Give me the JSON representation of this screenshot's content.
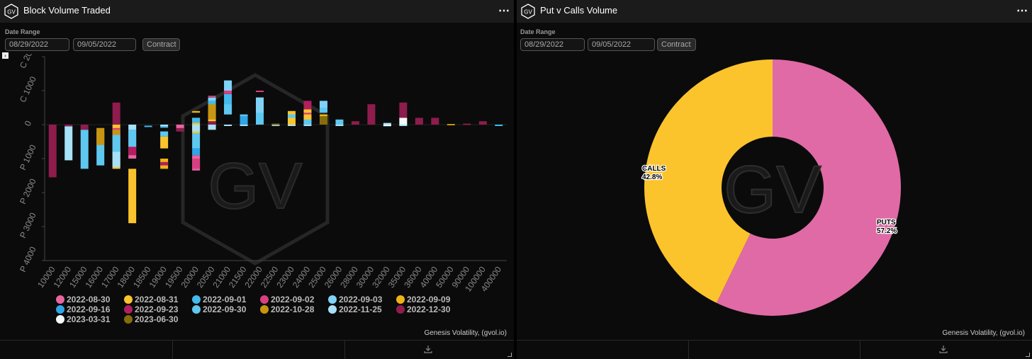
{
  "left_panel": {
    "title": "Block Volume Traded",
    "date_range_label": "Date Range",
    "start_date": "08/29/2022",
    "end_date": "09/05/2022",
    "contract_button": "Contract",
    "credit": "Genesis Volatility, (gvol.io)",
    "watermark": "GV"
  },
  "right_panel": {
    "title": "Put v Calls Volume",
    "date_range_label": "Date Range",
    "start_date": "08/29/2022",
    "end_date": "09/05/2022",
    "contract_button": "Contract",
    "credit": "Genesis Volatility, (gvol.io)",
    "watermark": "GV"
  },
  "chart_data": [
    {
      "type": "bar",
      "stacked": true,
      "categories": [
        "10000",
        "12000",
        "15000",
        "16000",
        "17000",
        "18000",
        "18500",
        "19000",
        "19500",
        "20000",
        "20500",
        "21000",
        "21500",
        "22000",
        "22500",
        "23000",
        "24000",
        "25000",
        "26000",
        "28000",
        "30000",
        "32000",
        "35000",
        "36000",
        "40000",
        "50000",
        "90000",
        "100000",
        "400000"
      ],
      "y_tick_labels": [
        "C 2000",
        "C 1000",
        "0",
        "P 1000",
        "P 2000",
        "P 3000",
        "P 4000"
      ],
      "y_tick_values": [
        2000,
        1000,
        0,
        -1000,
        -2000,
        -3000,
        -4000
      ],
      "ylim": [
        -4000,
        2000
      ],
      "series": [
        {
          "name": "2022-08-30",
          "color": "#e8659f",
          "values": [
            0,
            0,
            0,
            0,
            0,
            [
              -150,
              -1000
            ],
            0,
            0,
            [
              0,
              -200
            ],
            [
              -900,
              -1350
            ],
            0,
            0,
            0,
            0,
            0,
            0,
            0,
            0,
            0,
            0,
            0,
            0,
            0,
            0,
            0,
            0,
            0,
            0,
            0
          ]
        },
        {
          "name": "2022-08-31",
          "color": "#fcc42c",
          "values": [
            0,
            0,
            0,
            0,
            [
              0,
              -1300
            ],
            [
              -1300,
              -2900
            ],
            0,
            [
              -350,
              -700
            ],
            0,
            [
              200,
              -250
            ],
            [
              400,
              -150
            ],
            0,
            0,
            [
              50,
              50
            ],
            0,
            [
              400,
              0
            ],
            [
              450,
              0
            ],
            [
              60,
              0
            ],
            0,
            0,
            0,
            0,
            0,
            0,
            0,
            0,
            0,
            0,
            0
          ]
        },
        {
          "name": "2022-09-01",
          "color": "#44b9ec",
          "values": [
            0,
            0,
            0,
            0,
            0,
            0,
            [
              -30,
              -30
            ],
            [
              -50,
              -50
            ],
            0,
            [
              200,
              50
            ],
            [
              700,
              400
            ],
            [
              900,
              300
            ],
            [
              150,
              0
            ],
            [
              200,
              50
            ],
            0,
            0,
            0,
            0,
            0,
            0,
            0,
            [
              0,
              -50
            ],
            0,
            0,
            0,
            0,
            0,
            0,
            [
              0,
              -30
            ]
          ]
        },
        {
          "name": "2022-09-02",
          "color": "#d83f82",
          "values": [
            0,
            [
              -50,
              -50
            ],
            0,
            [
              -100,
              -100
            ],
            [
              -100,
              -800
            ],
            0,
            0,
            0,
            0,
            [
              -1000,
              -1300
            ],
            [
              850,
              850
            ],
            [
              1100,
              900
            ],
            0,
            [
              1000,
              1000
            ],
            0,
            0,
            [
              350,
              300
            ],
            0,
            0,
            0,
            0,
            0,
            0,
            0,
            0,
            0,
            0,
            0,
            0
          ]
        },
        {
          "name": "2022-09-03",
          "color": "#7fd3f7",
          "values": [
            0,
            0,
            0,
            0,
            0,
            0,
            0,
            0,
            0,
            0,
            [
              800,
              700
            ],
            [
              1300,
              1000
            ],
            0,
            [
              800,
              300
            ],
            0,
            0,
            0,
            [
              700,
              400
            ],
            0,
            0,
            0,
            0,
            0,
            0,
            0,
            0,
            0,
            0,
            0
          ]
        },
        {
          "name": "2022-09-09",
          "color": "#efb414",
          "values": [
            0,
            0,
            0,
            0,
            0,
            0,
            0,
            [
              -1000,
              -1300
            ],
            0,
            [
              400,
              350
            ],
            0,
            [
              0,
              0
            ],
            0,
            0,
            0,
            0,
            0,
            [
              300,
              250
            ],
            0,
            0,
            0,
            0,
            0,
            0,
            0,
            0,
            0,
            0,
            0
          ]
        },
        {
          "name": "2022-09-16",
          "color": "#2fa4e7",
          "values": [
            0,
            0,
            0,
            0,
            0,
            0,
            0,
            0,
            0,
            [
              -700,
              -900
            ],
            0,
            [
              0,
              0
            ],
            [
              250,
              0
            ],
            0,
            0,
            0,
            0,
            0,
            0,
            0,
            0,
            0,
            0,
            0,
            0,
            0,
            0,
            0,
            0
          ]
        },
        {
          "name": "2022-09-23",
          "color": "#b21e5f",
          "values": [
            0,
            0,
            0,
            0,
            0,
            [
              -650,
              -900
            ],
            0,
            [
              -1100,
              -1200
            ],
            0,
            [
              -300,
              -400
            ],
            0,
            [
              0,
              0
            ],
            0,
            0,
            0,
            0,
            [
              700,
              450
            ],
            0,
            0,
            0,
            0,
            0,
            0,
            0,
            0,
            0,
            0,
            0,
            0
          ]
        },
        {
          "name": "2022-09-30",
          "color": "#5ec8f0",
          "values": [
            0,
            0,
            [
              -150,
              -1300
            ],
            [
              -200,
              -1200
            ],
            [
              -300,
              -850
            ],
            [
              -150,
              -650
            ],
            0,
            [
              -200,
              -350
            ],
            0,
            [
              -250,
              -700
            ],
            0,
            [
              600,
              300
            ],
            [
              300,
              250
            ],
            [
              350,
              0
            ],
            0,
            [
              300,
              200
            ],
            [
              150,
              0
            ],
            [
              500,
              350
            ],
            [
              150,
              0
            ],
            0,
            0,
            0,
            0,
            0,
            0,
            0,
            0,
            0,
            0
          ]
        },
        {
          "name": "2022-10-28",
          "color": "#c89510",
          "values": [
            0,
            0,
            0,
            [
              -100,
              -600
            ],
            [
              -150,
              -300
            ],
            0,
            0,
            0,
            0,
            0,
            [
              600,
              150
            ],
            0,
            0,
            0,
            0,
            0,
            0,
            0,
            0,
            0,
            0,
            0,
            0,
            0,
            0,
            [
              20,
              -20
            ],
            0,
            0,
            0
          ]
        },
        {
          "name": "2022-11-25",
          "color": "#a6e1f7",
          "values": [
            0,
            [
              -50,
              -1050
            ],
            0,
            0,
            [
              -800,
              -1250
            ],
            [
              0,
              -150
            ],
            0,
            [
              0,
              -50
            ],
            0,
            [
              0,
              -200
            ],
            [
              0,
              -150
            ],
            [
              0,
              0
            ],
            [
              0,
              0
            ],
            0,
            [
              0,
              0
            ],
            [
              0,
              0
            ],
            [
              0,
              0
            ],
            0,
            [
              0,
              0
            ],
            0,
            0,
            [
              50,
              0
            ],
            [
              0,
              0
            ],
            0,
            0,
            0,
            0,
            0,
            0
          ]
        },
        {
          "name": "2022-12-30",
          "color": "#8e1c4d",
          "values": [
            [
              0,
              -1550
            ],
            [
              0,
              -50
            ],
            [
              0,
              -150
            ],
            0,
            [
              650,
              0
            ],
            0,
            0,
            0,
            [
              -100,
              -200
            ],
            0,
            [
              100,
              0
            ],
            0,
            0,
            0,
            0,
            0,
            0,
            0,
            0,
            [
              100,
              0
            ],
            [
              600,
              0
            ],
            0,
            [
              650,
              200
            ],
            [
              200,
              0
            ],
            [
              200,
              0
            ],
            0,
            [
              30,
              0
            ],
            [
              100,
              0
            ],
            0
          ]
        },
        {
          "name": "2023-03-31",
          "color": "#f4f9fc",
          "values": [
            0,
            0,
            0,
            0,
            0,
            0,
            0,
            0,
            0,
            0,
            0,
            0,
            0,
            0,
            0,
            0,
            0,
            0,
            0,
            0,
            0,
            [
              0,
              0
            ],
            [
              200,
              0
            ],
            0,
            0,
            0,
            0,
            0,
            0
          ]
        },
        {
          "name": "2023-06-30",
          "color": "#876d09",
          "values": [
            0,
            0,
            0,
            0,
            0,
            0,
            0,
            0,
            0,
            0,
            0,
            0,
            0,
            0,
            [
              30,
              0
            ],
            0,
            0,
            [
              250,
              0
            ],
            0,
            0,
            0,
            0,
            0,
            0,
            0,
            0,
            0,
            0,
            0
          ]
        }
      ],
      "value_format": "each value is [top, bottom] segment in chart units (positive = calls, negative = puts); 0 = no segment"
    },
    {
      "type": "pie",
      "donut": true,
      "labels": [
        "CALLS",
        "PUTS"
      ],
      "values": [
        42.8,
        57.2
      ],
      "display": [
        "42.8%",
        "57.2%"
      ],
      "colors": [
        "#fcc42c",
        "#e06aa5"
      ]
    }
  ]
}
